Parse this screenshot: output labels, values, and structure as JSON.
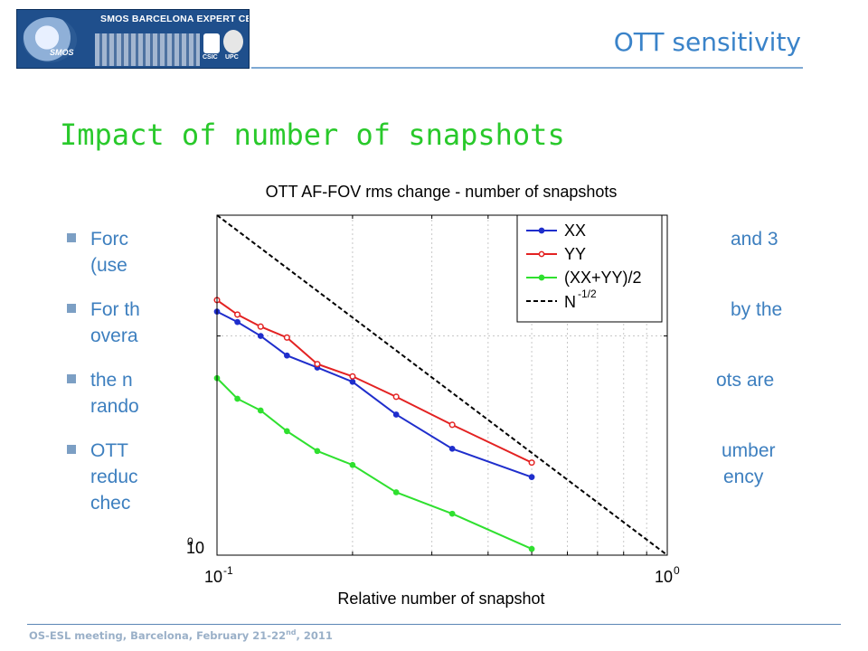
{
  "header": {
    "logo_text": "SMOS BARCELONA EXPERT CENTRE",
    "logo_smos": "SMOS",
    "logo_csic": "CSIC",
    "logo_upc": "UPC",
    "section_title": "OTT sensitivity"
  },
  "slide": {
    "title": "Impact of number of snapshots",
    "bullets": [
      {
        "left": "Forc",
        "right": "and 3",
        "line2": "(use"
      },
      {
        "left": "For th",
        "right": "by the",
        "line2": "overa"
      },
      {
        "left": "the n",
        "right": "ots are",
        "line2": "rando"
      },
      {
        "left": " OTT",
        "right": "umber",
        "line2": "reduc",
        "right2": "ency",
        "line3": "chec"
      }
    ]
  },
  "footer": {
    "prefix": "OS-ESL meeting, Barcelona, February 21-22",
    "sup": "nd",
    "suffix": ", 2011"
  },
  "chart_data": {
    "type": "line",
    "title": "OTT AF-FOV rms change - number of snapshots",
    "xlabel": "Relative number of snapshot",
    "ylabel": "",
    "xscale": "log",
    "yscale": "log",
    "xlim": [
      0.1,
      1
    ],
    "ylim": [
      1,
      2.93
    ],
    "xticks": [
      {
        "base": "10",
        "exp": "-1",
        "value": 0.1
      },
      {
        "base": "10",
        "exp": "0",
        "value": 1
      }
    ],
    "yticks": [
      {
        "base": "10",
        "exp": "0",
        "value": 1
      }
    ],
    "grid": true,
    "legend_position": "top-right",
    "series": [
      {
        "name": "XX",
        "color": "#1f2ecc",
        "marker": "filled",
        "x": [
          0.1,
          0.111,
          0.125,
          0.143,
          0.167,
          0.2,
          0.25,
          0.333,
          0.5
        ],
        "y": [
          2.16,
          2.09,
          2.0,
          1.88,
          1.81,
          1.73,
          1.56,
          1.4,
          1.28
        ]
      },
      {
        "name": "YY",
        "color": "#e32222",
        "marker": "open",
        "x": [
          0.1,
          0.111,
          0.125,
          0.143,
          0.167,
          0.2,
          0.25,
          0.333,
          0.5
        ],
        "y": [
          2.24,
          2.14,
          2.06,
          1.99,
          1.83,
          1.76,
          1.65,
          1.51,
          1.34
        ]
      },
      {
        "name": "(XX+YY)/2",
        "color": "#2fe02f",
        "marker": "filled",
        "x": [
          0.1,
          0.111,
          0.125,
          0.143,
          0.167,
          0.2,
          0.25,
          0.333,
          0.5
        ],
        "y": [
          1.75,
          1.64,
          1.58,
          1.48,
          1.39,
          1.33,
          1.22,
          1.14,
          1.02
        ]
      }
    ],
    "reference": {
      "name_base": "N",
      "name_exp": "-1/2",
      "color": "#000000",
      "style": "dashed",
      "x": [
        0.1,
        1
      ],
      "y": [
        2.93,
        1.0
      ]
    }
  }
}
